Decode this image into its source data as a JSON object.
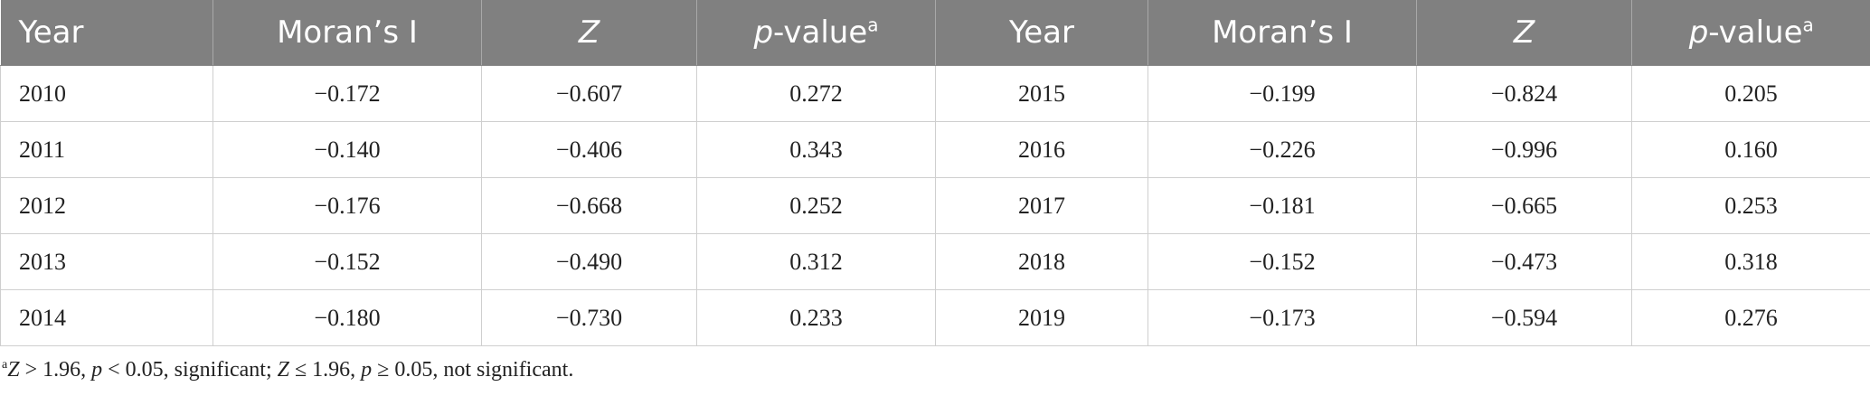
{
  "table": {
    "headers": [
      {
        "text": "Year",
        "italic_part": "",
        "sup": ""
      },
      {
        "text": "Moran’s I",
        "italic_part": "",
        "sup": ""
      },
      {
        "text": "",
        "italic_part": "Z",
        "sup": ""
      },
      {
        "text": "-value",
        "italic_part": "p",
        "sup": "a"
      },
      {
        "text": "Year",
        "italic_part": "",
        "sup": ""
      },
      {
        "text": "Moran’s I",
        "italic_part": "",
        "sup": ""
      },
      {
        "text": "",
        "italic_part": "Z",
        "sup": ""
      },
      {
        "text": "-value",
        "italic_part": "p",
        "sup": "a"
      }
    ],
    "rows": [
      [
        "2010",
        "−0.172",
        "−0.607",
        "0.272",
        "2015",
        "−0.199",
        "−0.824",
        "0.205"
      ],
      [
        "2011",
        "−0.140",
        "−0.406",
        "0.343",
        "2016",
        "−0.226",
        "−0.996",
        "0.160"
      ],
      [
        "2012",
        "−0.176",
        "−0.668",
        "0.252",
        "2017",
        "−0.181",
        "−0.665",
        "0.253"
      ],
      [
        "2013",
        "−0.152",
        "−0.490",
        "0.312",
        "2018",
        "−0.152",
        "−0.473",
        "0.318"
      ],
      [
        "2014",
        "−0.180",
        "−0.730",
        "0.233",
        "2019",
        "−0.173",
        "−0.594",
        "0.276"
      ]
    ]
  },
  "footnote": {
    "marker": "a",
    "z1": "Z",
    "t1": " > 1.96, ",
    "p1": "p",
    "t2": " < 0.05, significant; ",
    "z2": "Z",
    "t3": " ≤ 1.96, ",
    "p2": "p",
    "t4": " ≥ 0.05, not significant."
  },
  "colors": {
    "header_bg": "#808080",
    "header_text": "#ffffff",
    "grid": "#cfcfcf"
  }
}
